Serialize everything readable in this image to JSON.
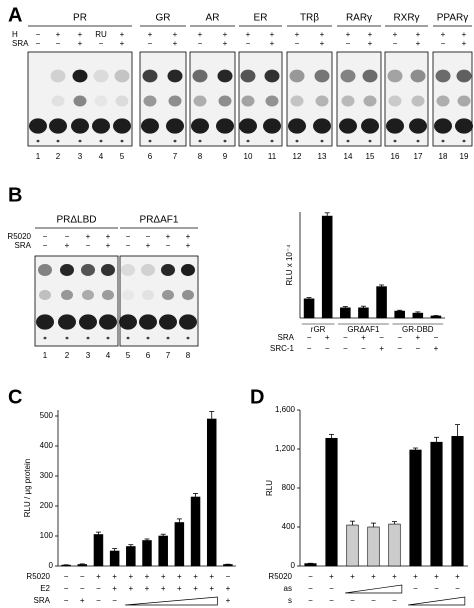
{
  "figure": {
    "panel_a": {
      "letter": "A",
      "groups": [
        "PR",
        "GR",
        "AR",
        "ER",
        "TRβ",
        "RARγ",
        "RXRγ",
        "PPARγ"
      ],
      "row_labels": [
        "H",
        "SRA"
      ],
      "h_row": [
        "−",
        "+",
        "+",
        "RU",
        "+",
        "+",
        "+",
        "+",
        "+",
        "+",
        "+",
        "+",
        "+",
        "+",
        "+",
        "+",
        "+",
        "+",
        "+"
      ],
      "sra_row": [
        "−",
        "−",
        "+",
        "−",
        "+",
        "−",
        "+",
        "−",
        "+",
        "−",
        "+",
        "−",
        "+",
        "−",
        "+",
        "−",
        "+",
        "−",
        "+"
      ],
      "lanes": [
        1,
        2,
        3,
        4,
        5,
        6,
        7,
        8,
        9,
        10,
        11,
        12,
        13,
        14,
        15,
        16,
        17,
        18,
        19
      ]
    },
    "panel_b": {
      "letter": "B",
      "groups": [
        "PRΔLBD",
        "PRΔAF1"
      ],
      "row_labels": [
        "R5020",
        "SRA"
      ],
      "r5020_row": [
        "−",
        "−",
        "+",
        "+",
        "−",
        "−",
        "+",
        "+"
      ],
      "sra_row": [
        "−",
        "+",
        "−",
        "+",
        "−",
        "+",
        "−",
        "+"
      ],
      "lanes": [
        1,
        2,
        3,
        4,
        5,
        6,
        7,
        8
      ]
    },
    "panel_c": {
      "letter": "C"
    },
    "panel_d": {
      "letter": "D"
    }
  },
  "chart_data": [
    {
      "type": "bar",
      "ylabel": "RLU x 10⁻⁴",
      "values": [
        47,
        250,
        25,
        25,
        77,
        17,
        12,
        5
      ],
      "errors": [
        3,
        8,
        3,
        4,
        4,
        2,
        3,
        1
      ],
      "color": "#000000",
      "ylim": [
        0,
        260
      ],
      "groups": [
        "rGR",
        "GRΔAF1",
        "GR-DBD"
      ],
      "rows": [
        {
          "label": "SRA",
          "signs": [
            "−",
            "+",
            "−",
            "+",
            "−",
            "−",
            "+",
            "−"
          ]
        },
        {
          "label": "SRC-1",
          "signs": [
            "−",
            "−",
            "−",
            "−",
            "+",
            "−",
            "−",
            "+"
          ]
        }
      ]
    },
    {
      "type": "bar",
      "ylabel": "RLU / μg protein",
      "values": [
        3,
        5,
        105,
        50,
        65,
        85,
        100,
        145,
        230,
        490,
        5
      ],
      "errors": [
        1,
        2,
        8,
        8,
        6,
        5,
        6,
        12,
        12,
        25,
        1
      ],
      "color": "#000000",
      "ylim": [
        0,
        520
      ],
      "yticks": [
        0,
        100,
        200,
        300,
        400,
        500
      ],
      "rows": [
        {
          "label": "R5020",
          "signs": [
            "−",
            "−",
            "+",
            "+",
            "+",
            "+",
            "+",
            "+",
            "+",
            "+",
            "−"
          ]
        },
        {
          "label": "E2",
          "signs": [
            "−",
            "−",
            "−",
            "+",
            "+",
            "+",
            "+",
            "+",
            "+",
            "+",
            "+"
          ]
        },
        {
          "label": "SRA",
          "signs": [
            "−",
            "+",
            "−",
            "−",
            null,
            null,
            null,
            null,
            null,
            null,
            "+"
          ]
        }
      ]
    },
    {
      "type": "bar",
      "ylabel": "RLU",
      "values": [
        25,
        1310,
        420,
        400,
        430,
        1190,
        1270,
        1330
      ],
      "errors": [
        3,
        40,
        40,
        40,
        25,
        20,
        50,
        120
      ],
      "colors": [
        "#000000",
        "#000000",
        "#cccccc",
        "#cccccc",
        "#cccccc",
        "#000000",
        "#000000",
        "#000000"
      ],
      "ylim": [
        0,
        1600
      ],
      "yticks": [
        0,
        400,
        800,
        {
          "value": 1200,
          "label": "1,200"
        },
        {
          "value": 1600,
          "label": "1,600"
        }
      ],
      "rows": [
        {
          "label": "R5020",
          "signs": [
            "−",
            "+",
            "+",
            "+",
            "+",
            "+",
            "+",
            "+"
          ]
        },
        {
          "label": "as",
          "signs": [
            "−",
            "−",
            null,
            null,
            null,
            "−",
            "−",
            "−"
          ]
        },
        {
          "label": "s",
          "signs": [
            "−",
            "−",
            "−",
            "−",
            "−",
            null,
            null,
            null
          ]
        }
      ]
    }
  ]
}
